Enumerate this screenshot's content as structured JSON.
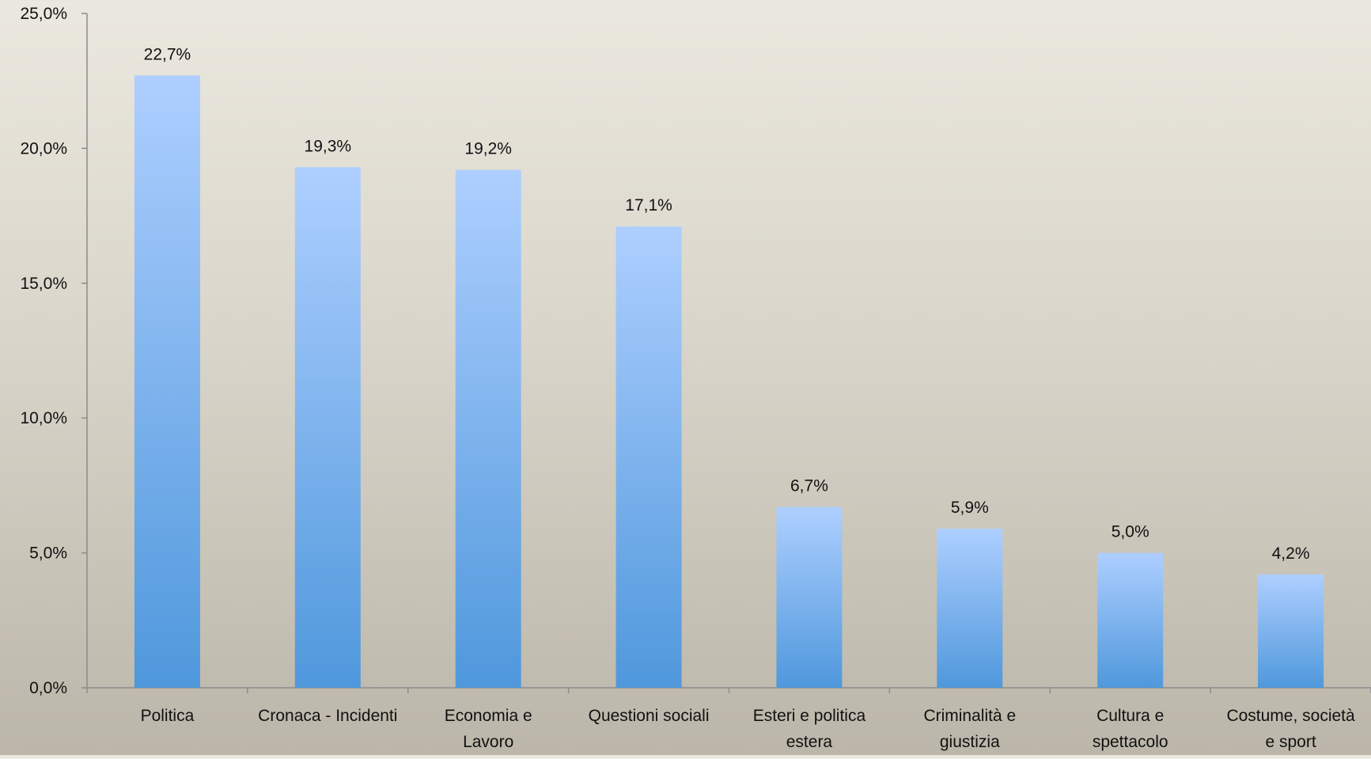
{
  "chart_data": {
    "type": "bar",
    "title": "",
    "xlabel": "",
    "ylabel": "",
    "categories": [
      [
        "Politica"
      ],
      [
        "Cronaca - Incidenti"
      ],
      [
        "Economia e",
        "Lavoro"
      ],
      [
        "Questioni sociali"
      ],
      [
        "Esteri e politica",
        "estera"
      ],
      [
        "Criminalità e",
        "giustizia"
      ],
      [
        "Cultura e",
        "spettacolo"
      ],
      [
        "Costume, società",
        "e sport"
      ]
    ],
    "values": [
      22.7,
      19.3,
      19.2,
      17.1,
      6.7,
      5.9,
      5.0,
      4.2
    ],
    "value_labels": [
      "22,7%",
      "19,3%",
      "19,2%",
      "17,1%",
      "6,7%",
      "5,9%",
      "5,0%",
      "4,2%"
    ],
    "ylim": [
      0,
      25
    ],
    "yticks": [
      0,
      5,
      10,
      15,
      20,
      25
    ],
    "ytick_labels": [
      "0,0%",
      "5,0%",
      "10,0%",
      "15,0%",
      "20,0%",
      "25,0%"
    ],
    "grid": false,
    "legend": "none",
    "colors": {
      "bar_top": "#aecfff",
      "bar_bottom": "#4f98dc",
      "axis": "#8c8c8c"
    }
  }
}
